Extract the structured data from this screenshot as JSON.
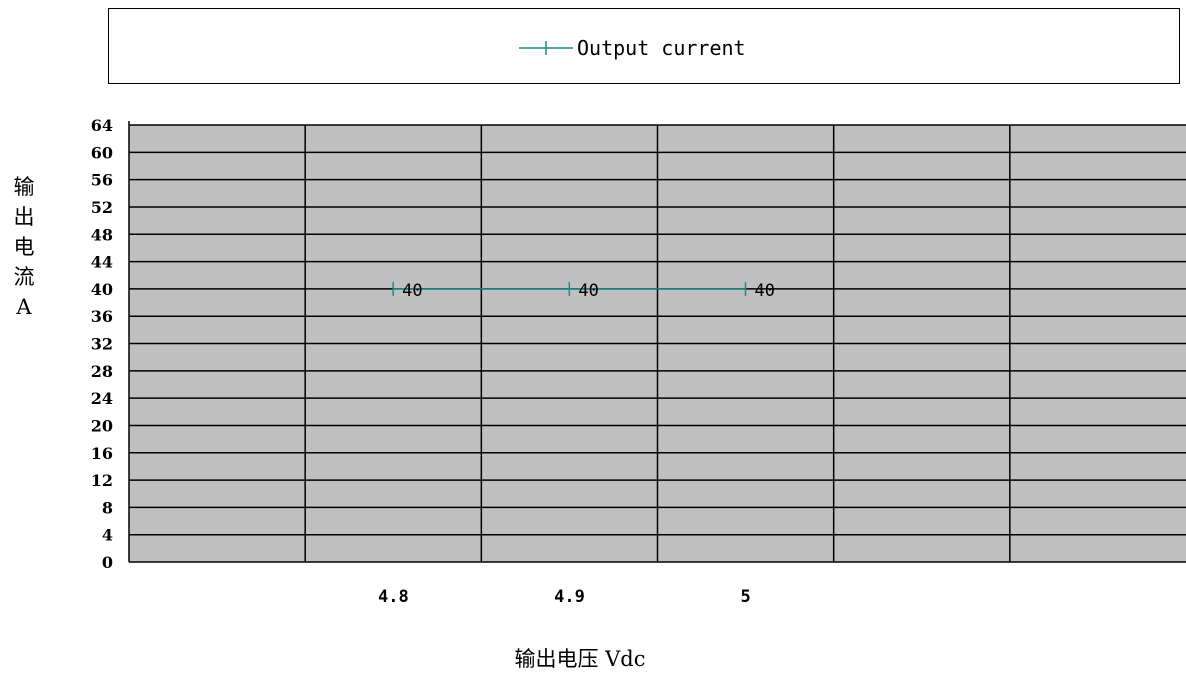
{
  "legend": {
    "label": "Output current",
    "color": "#1a8a8a"
  },
  "chart_data": {
    "type": "line",
    "title": "",
    "xlabel": "输出电压 Vdc",
    "ylabel": "输出电流A",
    "ylabel_chars": [
      "输",
      "出",
      "电",
      "流",
      "A"
    ],
    "categories": [
      "",
      "4.8",
      "4.9",
      "5",
      "",
      "",
      ""
    ],
    "series": [
      {
        "name": "Output current",
        "x": [
          "4.8",
          "4.9",
          "5"
        ],
        "values": [
          40,
          40,
          40
        ],
        "color": "#1a8a8a"
      }
    ],
    "data_labels": [
      "40",
      "40",
      "40"
    ],
    "yticks": [
      0,
      4,
      8,
      12,
      16,
      20,
      24,
      28,
      32,
      36,
      40,
      44,
      48,
      52,
      56,
      60,
      64
    ],
    "ylim": [
      0,
      64
    ],
    "grid": true,
    "plot_background": "#c0c0c0",
    "legend_position": "top"
  }
}
